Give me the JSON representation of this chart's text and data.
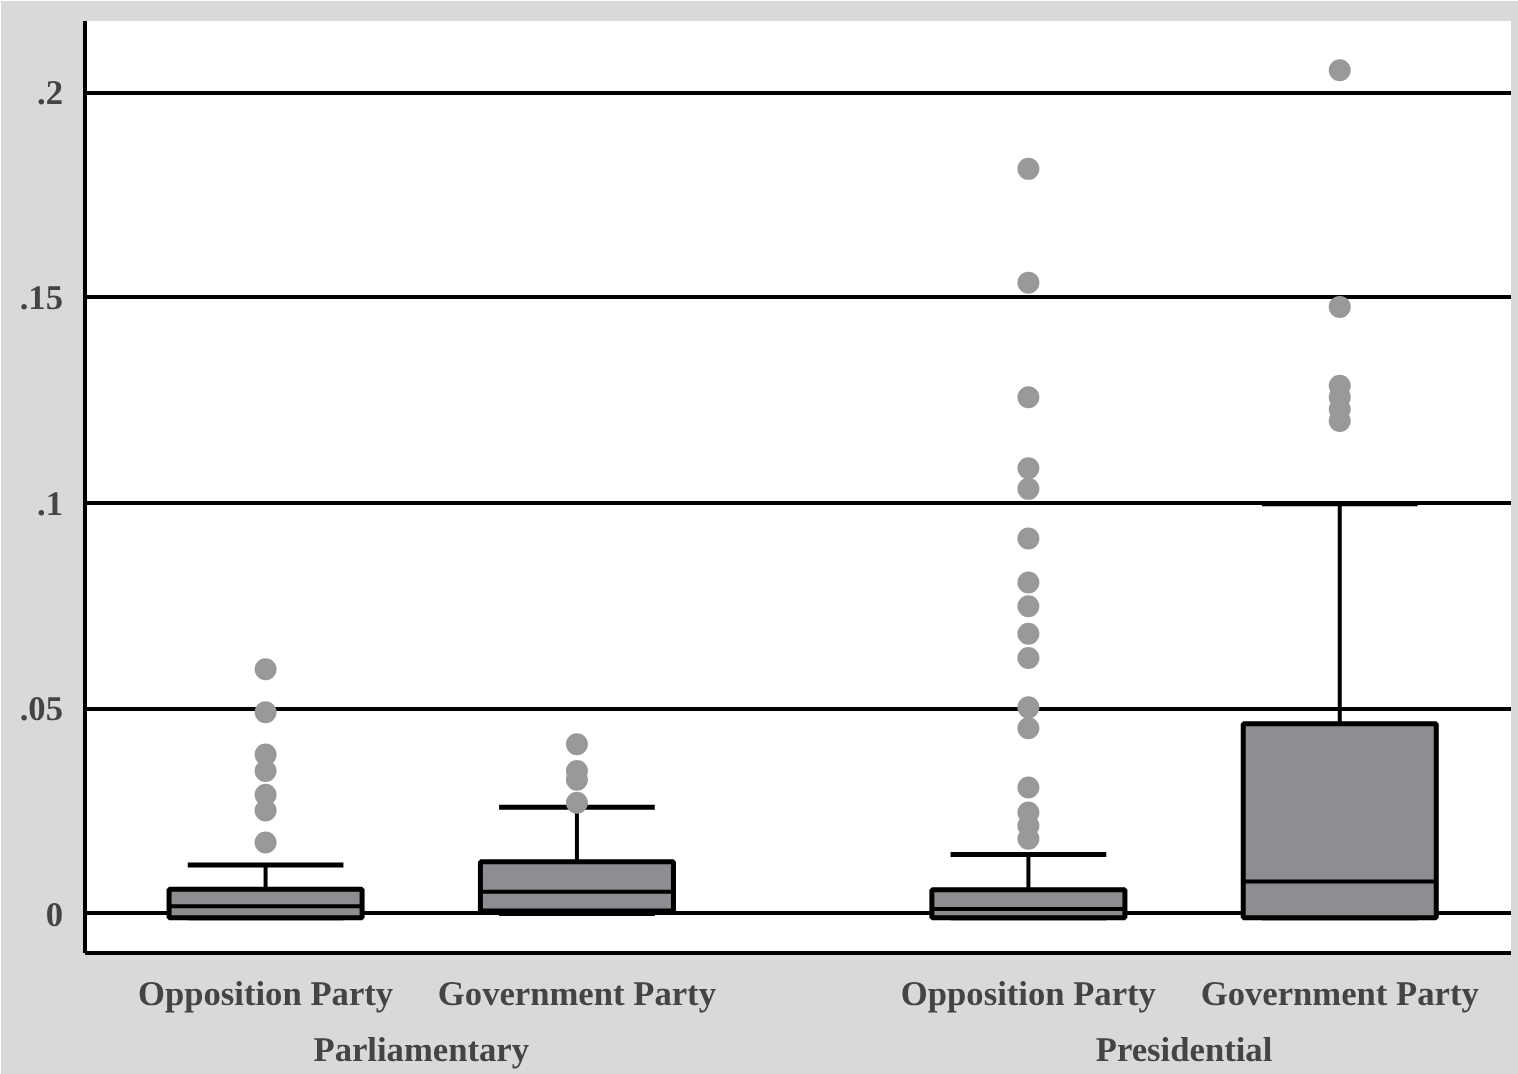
{
  "chart_data": {
    "type": "box",
    "categories": [
      "Opposition Party",
      "Government Party",
      "Opposition Party",
      "Government Party"
    ],
    "annotations": [
      "Parliamentary",
      "Presidential"
    ],
    "series": [
      {
        "color": "#8e8e92",
        "boxes": [
          {
            "low": -0.001,
            "q1": -0.001,
            "median": 0.0018,
            "q3": 0.0059,
            "high": 0.0118,
            "outliers": [
              0.0595,
              0.049,
              0.0387,
              0.0347,
              0.0289,
              0.0251,
              0.0173
            ]
          },
          {
            "low": 0.0,
            "q1": 0.0006,
            "median": 0.0053,
            "q3": 0.0126,
            "high": 0.0259,
            "outliers": [
              0.0412,
              0.0347,
              0.0326,
              0.027
            ]
          },
          {
            "low": -0.001,
            "q1": -0.001,
            "median": 0.0011,
            "q3": 0.0058,
            "high": 0.0144,
            "outliers": [
              0.1813,
              0.1536,
              0.1257,
              0.1084,
              0.1034,
              0.0913,
              0.0806,
              0.0748,
              0.0681,
              0.0622,
              0.0502,
              0.0451,
              0.0307,
              0.0246,
              0.0214,
              0.0182
            ]
          },
          {
            "low": -0.001,
            "q1": -0.001,
            "median": 0.0078,
            "q3": 0.0462,
            "high": 0.0998,
            "outliers": [
              0.2053,
              0.1477,
              0.1285,
              0.1257,
              0.1228,
              0.1199
            ]
          }
        ]
      }
    ],
    "ylim": [
      -0.0096,
      0.2173
    ],
    "yticks": [
      0,
      {
        "value": 0.05,
        "label": ".05"
      },
      {
        "value": 0.1,
        "label": ".1"
      },
      {
        "value": 0.15,
        "label": ".15"
      },
      {
        "value": 0.2,
        "label": ".2"
      }
    ],
    "grid": "y"
  }
}
